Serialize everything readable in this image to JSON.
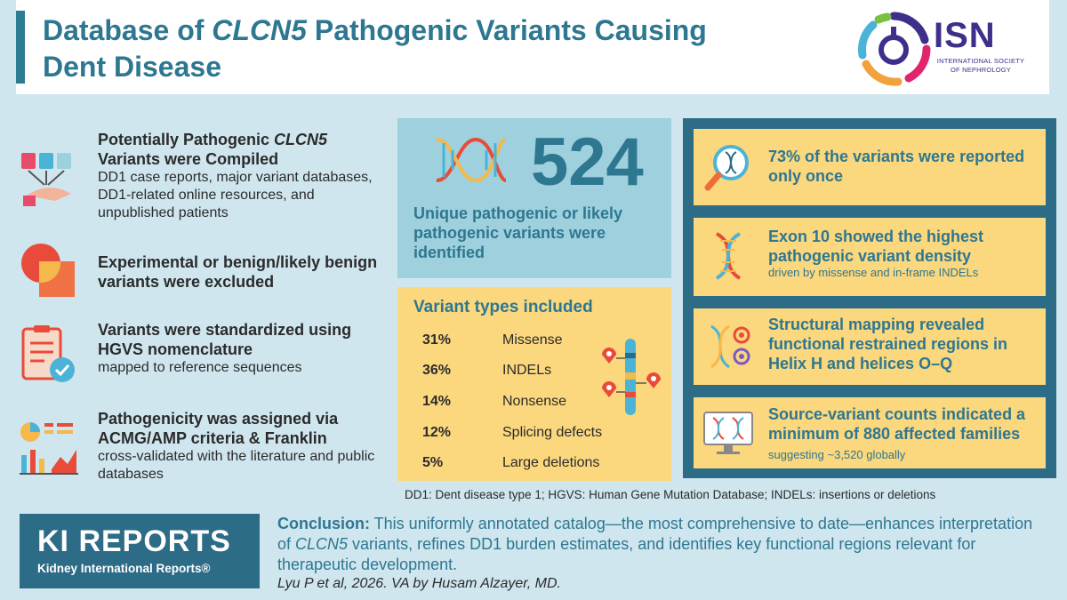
{
  "header": {
    "title_part1": "Database of ",
    "title_gene": "CLCN5",
    "title_part2": " Pathogenic Variants Causing",
    "title_line2": "Dent Disease"
  },
  "isn_logo": {
    "abbr": "ISN",
    "line1": "INTERNATIONAL SOCIETY",
    "line2": "OF NEPHROLOGY"
  },
  "left_items": [
    {
      "head_part1": "Potentially Pathogenic ",
      "head_gene": "CLCN5",
      "head_part2": "Variants were Compiled",
      "body": "DD1 case reports, major variant databases, DD1-related online resources, and unpublished patients"
    },
    {
      "head": "Experimental or benign/likely benign variants were excluded"
    },
    {
      "head": "Variants were standardized using HGVS nomenclature",
      "body": "mapped to reference sequences"
    },
    {
      "head": "Pathogenicity was assigned via ACMG/AMP criteria & Franklin",
      "body": "cross-validated with the literature and public databases"
    }
  ],
  "count_box": {
    "number": "524",
    "label": "Unique pathogenic or likely pathogenic variants were identified"
  },
  "variant_types": {
    "heading": "Variant types included",
    "rows": [
      {
        "pct": "31%",
        "name": "Missense"
      },
      {
        "pct": "36%",
        "name": "INDELs"
      },
      {
        "pct": "14%",
        "name": "Nonsense"
      },
      {
        "pct": "12%",
        "name": "Splicing defects"
      },
      {
        "pct": "5%",
        "name": "Large deletions"
      }
    ]
  },
  "footnote": "DD1: Dent disease type 1; HGVS: Human Gene Mutation Database; INDELs: insertions or deletions",
  "right_cards": [
    {
      "head": "73% of the variants were reported only once",
      "sub": ""
    },
    {
      "head": "Exon 10 showed the highest pathogenic variant density",
      "sub": "driven by missense and in-frame INDELs"
    },
    {
      "head": "Structural mapping revealed functional restrained regions in Helix H and helices O–Q",
      "sub": ""
    },
    {
      "head": "Source-variant counts indicated a minimum of 880 affected families",
      "sub": "suggesting ~3,520 globally"
    }
  ],
  "kir": {
    "title": "KI REPORTS",
    "subtitle": "Kidney International Reports®"
  },
  "conclusion": {
    "label": "Conclusion:",
    "text_part1": " This uniformly annotated catalog—the most comprehensive to date—enhances interpretation of ",
    "gene": "CLCN5",
    "text_part2": " variants, refines DD1 burden estimates, and identifies key functional regions relevant for therapeutic development."
  },
  "citation": "Lyu P et al, 2026. VA by Husam Alzayer, MD.",
  "colors": {
    "teal_dark": "#2c6c86",
    "teal_text": "#2e7790",
    "light_blue": "#9fd0dd",
    "yellow": "#fbd77e",
    "background": "#cfe6ef"
  }
}
